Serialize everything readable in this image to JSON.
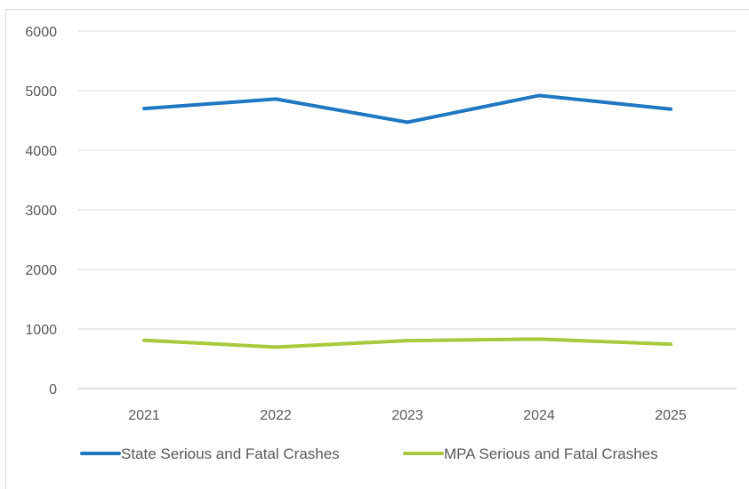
{
  "chart_data": {
    "type": "line",
    "categories": [
      "2021",
      "2022",
      "2023",
      "2024",
      "2025"
    ],
    "series": [
      {
        "name": "State Serious and Fatal Crashes",
        "values": [
          4700,
          4860,
          4470,
          4920,
          4690
        ],
        "color": "#1f77c3"
      },
      {
        "name": "MPA Serious and Fatal Crashes",
        "values": [
          810,
          695,
          805,
          830,
          745
        ],
        "color": "#a9c83b"
      }
    ],
    "ylim": [
      0,
      6000
    ],
    "yticks": [
      "0",
      "1000",
      "2000",
      "3000",
      "4000",
      "5000",
      "6000"
    ],
    "grid": true,
    "legend_position": "bottom"
  }
}
